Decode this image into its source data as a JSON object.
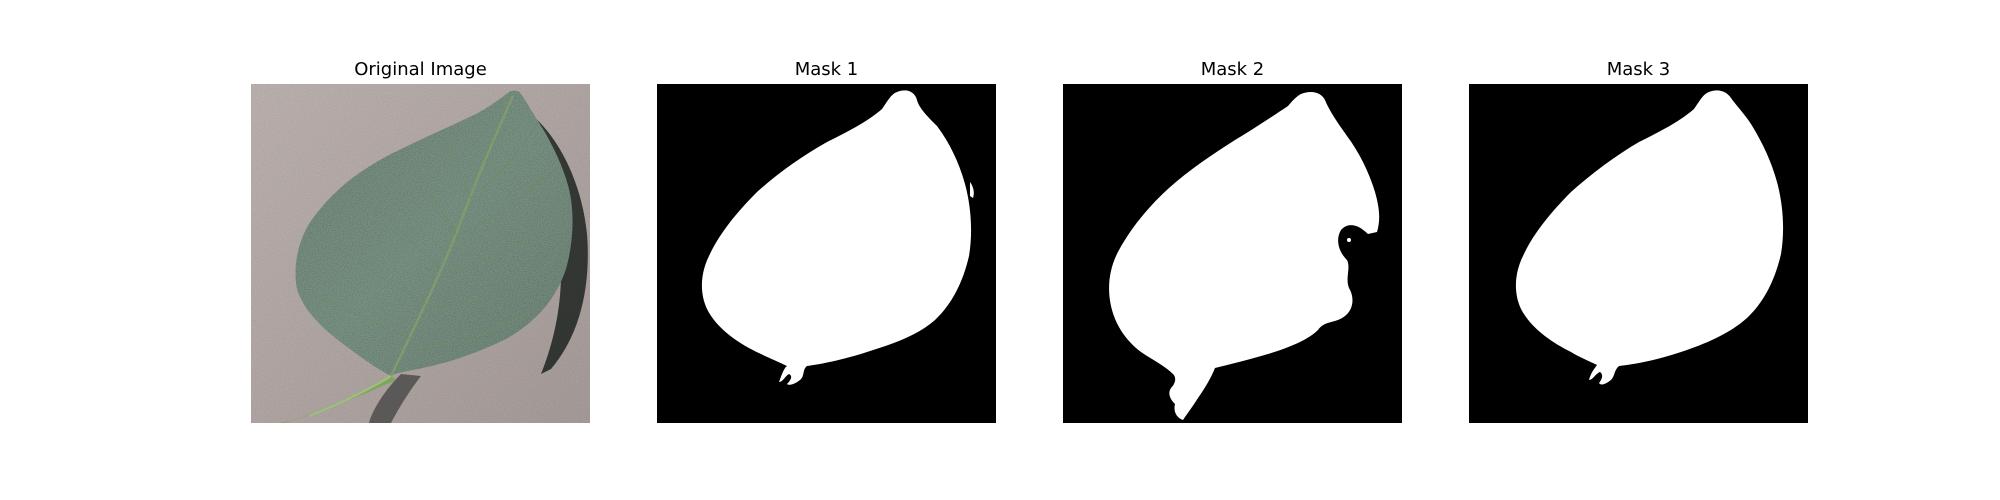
{
  "figure": {
    "panels": [
      {
        "title": "Original Image",
        "kind": "photo",
        "subject": "leaf"
      },
      {
        "title": "Mask 1",
        "kind": "binary-mask"
      },
      {
        "title": "Mask 2",
        "kind": "binary-mask"
      },
      {
        "title": "Mask 3",
        "kind": "binary-mask"
      }
    ]
  },
  "colors": {
    "mask_foreground": "#ffffff",
    "mask_background": "#000000",
    "leaf": "#45604f",
    "background_surface": "#b7adab"
  }
}
